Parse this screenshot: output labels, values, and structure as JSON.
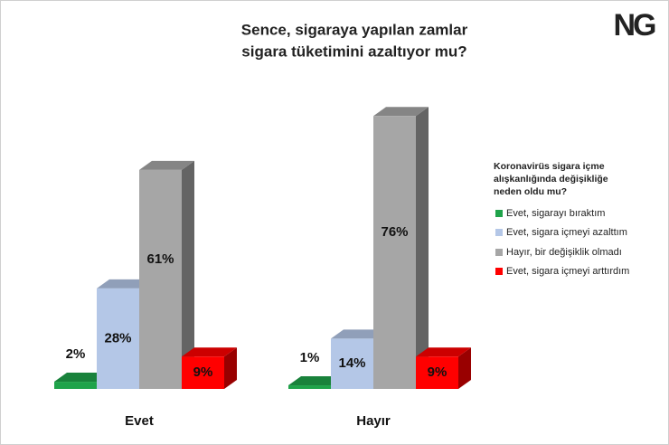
{
  "chart_data": {
    "type": "bar3d",
    "title": [
      "Sence, sigaraya yapılan zamlar",
      "sigara tüketimini azaltıyor mu?"
    ],
    "logo": "NG",
    "legend_title": "Koronavirüs sigara içme alışkanlığında değişikliğe neden oldu mu?",
    "categories": [
      "Evet",
      "Hayır"
    ],
    "series": [
      {
        "name": "Evet, sigarayı bıraktım",
        "color": "#1fa34a",
        "values": [
          2,
          1
        ],
        "value_labels": [
          "2%",
          "1%"
        ]
      },
      {
        "name": "Evet, sigara içmeyi azalttım",
        "color": "#b4c7e7",
        "values": [
          28,
          14
        ],
        "value_labels": [
          "28%",
          "14%"
        ]
      },
      {
        "name": "Hayır, bir değişiklik olmadı",
        "color": "#a6a6a6",
        "values": [
          61,
          76
        ],
        "value_labels": [
          "61%",
          "76%"
        ]
      },
      {
        "name": "Evet, sigara içmeyi arttırdım",
        "color": "#ff0000",
        "values": [
          9,
          9
        ],
        "value_labels": [
          "9%",
          "9%"
        ]
      }
    ]
  }
}
